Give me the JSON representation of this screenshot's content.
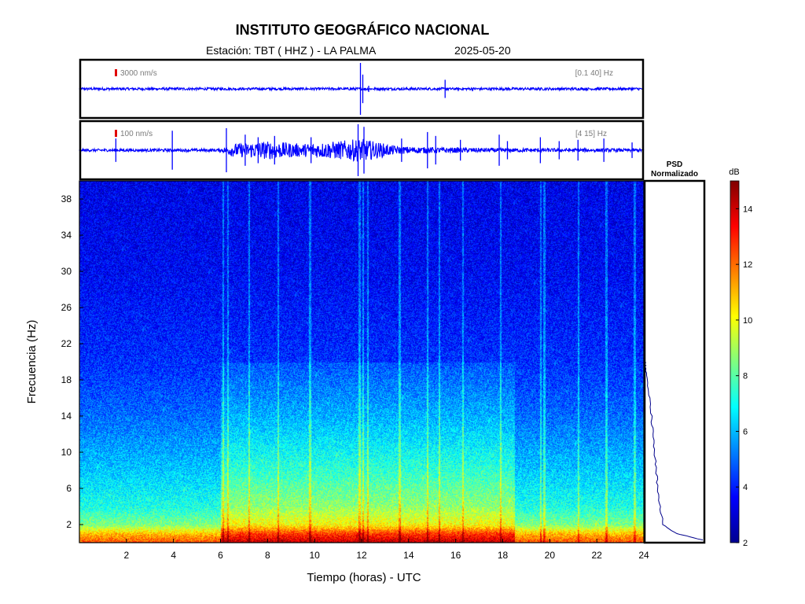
{
  "header": {
    "title": "INSTITUTO GEOGRÁFICO NACIONAL",
    "station_label": "Estación:  TBT ( HHZ ) - LA PALMA",
    "date": "2025-05-20"
  },
  "colors": {
    "trace": "#0000ff",
    "scale_marker": "#e00000",
    "psd_line": "#00008b"
  },
  "chart_data": [
    {
      "type": "line",
      "name": "seismogram-broadband",
      "amplitude_scale": "3000 nm/s",
      "filter_band": "[0.1 40] Hz",
      "x_unit": "hours UTC",
      "xlim": [
        0,
        24
      ],
      "events": [
        {
          "t": 11.95,
          "amp": 1.0
        },
        {
          "t": 12.05,
          "amp": 0.55
        },
        {
          "t": 15.55,
          "amp": 0.35
        },
        {
          "t": 12.3,
          "amp": 0.12
        }
      ],
      "base_noise": 0.05
    },
    {
      "type": "line",
      "name": "seismogram-filtered",
      "amplitude_scale": "100 nm/s",
      "filter_band": "[4 15] Hz",
      "x_unit": "hours UTC",
      "xlim": [
        0,
        24
      ],
      "tremor_envelope": [
        {
          "t": 0,
          "amp": 0.05
        },
        {
          "t": 6,
          "amp": 0.06
        },
        {
          "t": 6.5,
          "amp": 0.25
        },
        {
          "t": 8,
          "amp": 0.35
        },
        {
          "t": 9.5,
          "amp": 0.25
        },
        {
          "t": 11,
          "amp": 0.35
        },
        {
          "t": 12,
          "amp": 0.45
        },
        {
          "t": 13.5,
          "amp": 0.15
        },
        {
          "t": 14.5,
          "amp": 0.12
        },
        {
          "t": 16,
          "amp": 0.1
        },
        {
          "t": 18,
          "amp": 0.08
        },
        {
          "t": 24,
          "amp": 0.06
        }
      ],
      "spikes": [
        {
          "t": 1.55,
          "amp": 0.45
        },
        {
          "t": 3.95,
          "amp": 0.75
        },
        {
          "t": 6.25,
          "amp": 0.85
        },
        {
          "t": 7.05,
          "amp": 0.6
        },
        {
          "t": 7.6,
          "amp": 0.5
        },
        {
          "t": 8.3,
          "amp": 0.55
        },
        {
          "t": 9.85,
          "amp": 0.5
        },
        {
          "t": 11.85,
          "amp": 1.0
        },
        {
          "t": 12.1,
          "amp": 0.9
        },
        {
          "t": 13.7,
          "amp": 0.45
        },
        {
          "t": 14.8,
          "amp": 0.7
        },
        {
          "t": 15.15,
          "amp": 0.55
        },
        {
          "t": 16.2,
          "amp": 0.4
        },
        {
          "t": 17.85,
          "amp": 0.6
        },
        {
          "t": 18.2,
          "amp": 0.35
        },
        {
          "t": 19.6,
          "amp": 0.5
        },
        {
          "t": 20.4,
          "amp": 0.35
        },
        {
          "t": 21.2,
          "amp": 0.4
        },
        {
          "t": 22.3,
          "amp": 0.45
        },
        {
          "t": 23.5,
          "amp": 0.3
        }
      ]
    },
    {
      "type": "heatmap",
      "name": "spectrogram",
      "xlabel": "Tiempo (horas) - UTC",
      "ylabel": "Frecuencia  (Hz)",
      "xlim": [
        0,
        24
      ],
      "ylim": [
        0,
        40
      ],
      "x_ticks": [
        2,
        4,
        6,
        8,
        10,
        12,
        14,
        16,
        18,
        20,
        22,
        24
      ],
      "y_ticks": [
        2,
        6,
        10,
        14,
        18,
        22,
        26,
        30,
        34,
        38
      ],
      "db_background_low_freq": [
        {
          "f": 0,
          "db": 12.5
        },
        {
          "f": 1,
          "db": 11
        },
        {
          "f": 2,
          "db": 8.5
        },
        {
          "f": 4,
          "db": 7.2
        },
        {
          "f": 8,
          "db": 6.2
        },
        {
          "f": 14,
          "db": 5.0
        },
        {
          "f": 20,
          "db": 4.2
        },
        {
          "f": 30,
          "db": 3.6
        },
        {
          "f": 40,
          "db": 3.4
        }
      ],
      "daytime_boost_hours": [
        6,
        18.5
      ],
      "vertical_streaks_hours": [
        6.1,
        6.3,
        7.2,
        8.45,
        9.8,
        11.9,
        12.05,
        12.25,
        13.6,
        14.8,
        15.3,
        16.3,
        17.9,
        19.6,
        19.75,
        21.2,
        22.4,
        23.6
      ]
    },
    {
      "type": "line",
      "name": "psd-normalized",
      "title": "PSD",
      "subtitle": "Normalizado",
      "x_unit": "normalized 0-1",
      "y_unit": "Hz",
      "points": [
        {
          "f": 0.3,
          "p": 1.0
        },
        {
          "f": 1,
          "p": 0.55
        },
        {
          "f": 2,
          "p": 0.32
        },
        {
          "f": 4,
          "p": 0.26
        },
        {
          "f": 6,
          "p": 0.22
        },
        {
          "f": 8,
          "p": 0.2
        },
        {
          "f": 10,
          "p": 0.17
        },
        {
          "f": 12,
          "p": 0.14
        },
        {
          "f": 14,
          "p": 0.12
        },
        {
          "f": 16,
          "p": 0.08
        },
        {
          "f": 18,
          "p": 0.05
        },
        {
          "f": 19.5,
          "p": 0.02
        },
        {
          "f": 20,
          "p": 0.0
        }
      ]
    },
    {
      "type": "heatmap",
      "name": "colorbar",
      "label": "dB",
      "range": [
        2,
        15
      ],
      "ticks": [
        2,
        4,
        6,
        8,
        10,
        12,
        14
      ]
    }
  ]
}
